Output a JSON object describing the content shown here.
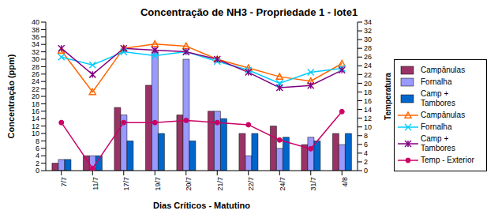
{
  "chart_data": {
    "type": "bar",
    "title": "Concentração de NH3 - Propriedade 1 - lote1",
    "x_label": "Dias Críticos  - Matutino",
    "y_label": "Concentração (ppm)",
    "y2_label": "Temperatura",
    "categories": [
      "7/7",
      "11/7",
      "17/7",
      "19/7",
      "20/7",
      "21/7",
      "22/7",
      "24/7",
      "31/7",
      "4/8"
    ],
    "ylim": [
      0,
      40
    ],
    "yticks": [
      0,
      2,
      4,
      6,
      8,
      10,
      12,
      14,
      16,
      18,
      20,
      22,
      24,
      26,
      28,
      30,
      32,
      34,
      36,
      38,
      40
    ],
    "y2lim": [
      0,
      34
    ],
    "y2ticks": [
      0,
      2,
      4,
      6,
      8,
      10,
      12,
      14,
      16,
      18,
      20,
      22,
      24,
      26,
      28,
      30,
      32,
      34
    ],
    "grid": false,
    "legend": "right",
    "series": [
      {
        "name": "Campânulas",
        "type": "bar",
        "color": "#993366",
        "values": [
          2,
          4,
          17,
          23,
          15,
          16,
          10,
          12,
          7,
          10
        ]
      },
      {
        "name": "Fornalha",
        "type": "bar",
        "color": "#9999FF",
        "values": [
          3,
          4,
          15,
          32,
          30,
          16,
          4,
          6,
          9,
          7
        ]
      },
      {
        "name": "Camp + Tambores",
        "type": "bar",
        "color": "#0066CC",
        "values": [
          3,
          4,
          8,
          10,
          8,
          14,
          10,
          9,
          8,
          10
        ]
      },
      {
        "name": "Campânulas",
        "type": "line",
        "axis": "y2",
        "color": "#FF6600",
        "marker": "triangle",
        "values": [
          27.5,
          18,
          28,
          29,
          28.5,
          25.5,
          23.5,
          21.5,
          20.5,
          24.5
        ]
      },
      {
        "name": "Fornalha",
        "type": "line",
        "axis": "y2",
        "color": "#00CCFF",
        "marker": "x",
        "values": [
          26,
          24.2,
          27.2,
          26.3,
          27.2,
          25,
          23,
          20,
          22.5,
          23.4
        ]
      },
      {
        "name": "Camp + Tambores",
        "type": "line",
        "axis": "y2",
        "color": "#800080",
        "marker": "star",
        "values": [
          28,
          22,
          28,
          27.6,
          27.2,
          25.5,
          22.5,
          19,
          19.5,
          23
        ]
      },
      {
        "name": "Temp - Exterior",
        "type": "line",
        "axis": "y2",
        "color": "#CC0066",
        "marker": "circle",
        "values": [
          11,
          0.5,
          11,
          11,
          11.5,
          11,
          10.5,
          7,
          5,
          13.5
        ]
      }
    ]
  }
}
